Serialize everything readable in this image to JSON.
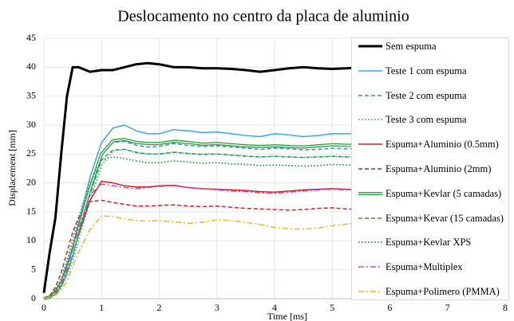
{
  "chart_data": {
    "type": "line",
    "title": "Deslocamento no centro da placa de aluminio",
    "xlabel": "Time [ms]",
    "ylabel": "Displacement [mm]",
    "x": [
      0,
      0.1,
      0.2,
      0.3,
      0.4,
      0.5,
      0.6,
      0.8,
      1.0,
      1.2,
      1.4,
      1.6,
      1.8,
      2.0,
      2.25,
      2.5,
      2.75,
      3.0,
      3.25,
      3.5,
      3.75,
      4.0,
      4.25,
      4.5,
      4.75,
      5.0,
      5.25,
      5.5
    ],
    "xlim": [
      0,
      8
    ],
    "xticks": [
      0,
      1,
      2,
      3,
      4,
      5,
      6,
      7,
      8
    ],
    "ylim": [
      0,
      45
    ],
    "yticks": [
      0,
      5,
      10,
      15,
      20,
      25,
      30,
      35,
      40,
      45
    ],
    "grid": true,
    "legend": "right",
    "series": [
      {
        "name": "Sem espuma",
        "color": "#000000",
        "style": "thick",
        "values": [
          1,
          8,
          14,
          25,
          35,
          40,
          40,
          39.2,
          39.5,
          39.5,
          40,
          40.5,
          40.7,
          40.5,
          40,
          40,
          39.8,
          39.8,
          39.7,
          39.5,
          39.2,
          39.5,
          39.8,
          40,
          39.8,
          39.7,
          39.8,
          40
        ]
      },
      {
        "name": "Teste 1 com espuma",
        "color": "#3aa8e0",
        "style": "solid",
        "values": [
          0,
          0.5,
          1.5,
          3,
          6,
          9,
          13,
          21,
          27,
          29.5,
          30,
          29,
          28.5,
          28.5,
          29.2,
          29,
          28.7,
          28.8,
          28.5,
          28.2,
          28,
          28.5,
          28.3,
          28,
          28.2,
          28.5,
          28.5,
          28.5
        ]
      },
      {
        "name": "Teste 2 com espuma",
        "color": "#3a8fd0",
        "style": "dashed",
        "values": [
          0,
          0.3,
          1,
          2.5,
          5,
          8,
          12,
          19,
          25,
          27,
          27.2,
          26.5,
          26.2,
          26.3,
          26.8,
          26.5,
          26.3,
          26.4,
          26.2,
          26,
          25.8,
          26,
          25.9,
          25.7,
          25.8,
          26,
          25.9,
          26
        ]
      },
      {
        "name": "Teste 3 com espuma",
        "color": "#4aa0d8",
        "style": "dotted",
        "values": [
          0,
          0.2,
          0.8,
          2,
          4,
          6.5,
          10,
          17,
          23,
          25.5,
          25.8,
          25.2,
          25,
          25,
          25.3,
          25.1,
          25,
          25,
          24.8,
          24.7,
          24.5,
          24.6,
          24.5,
          24.4,
          24.5,
          24.6,
          24.5,
          24.6
        ]
      },
      {
        "name": "Espuma+Aluminio (0.5mm)",
        "color": "#d62020",
        "style": "solid",
        "values": [
          0,
          0.3,
          1,
          2.5,
          5,
          8,
          11,
          17,
          20.3,
          20,
          19.5,
          19.3,
          19.3,
          19.5,
          19.6,
          19.2,
          19,
          18.9,
          18.8,
          18.7,
          18.5,
          18.4,
          18.6,
          18.8,
          18.9,
          19,
          18.9,
          18.8
        ]
      },
      {
        "name": "Espuma+Aluminio (2mm)",
        "color": "#d62020",
        "style": "dashed",
        "values": [
          0,
          0.5,
          2,
          4.5,
          8,
          11.5,
          14,
          16.8,
          17,
          16.6,
          16.3,
          16,
          16,
          16.1,
          16.2,
          16,
          15.9,
          16,
          15.8,
          15.6,
          15.5,
          15.4,
          15.3,
          15.4,
          15.6,
          15.7,
          15.5,
          15.4
        ]
      },
      {
        "name": "Espuma+Kevlar (5 camadas)",
        "color": "#2ea040",
        "style": "double",
        "values": [
          0,
          0.3,
          1,
          2.5,
          5,
          8,
          12,
          19,
          25,
          27.3,
          27.5,
          27,
          26.8,
          26.8,
          27.2,
          27,
          26.7,
          26.8,
          26.6,
          26.4,
          26.3,
          26.4,
          26.3,
          26.2,
          26.4,
          26.6,
          26.5,
          26.5
        ]
      },
      {
        "name": "Espuma+Kevar (15 camadas)",
        "color": "#2ea040",
        "style": "dashed",
        "values": [
          0,
          0.3,
          1,
          2.3,
          4.5,
          7.5,
          11,
          18,
          24,
          25.7,
          25.8,
          25.3,
          25,
          25,
          25.3,
          25.1,
          24.9,
          25,
          24.8,
          24.6,
          24.5,
          24.6,
          24.5,
          24.4,
          24.5,
          24.6,
          24.5,
          24.5
        ]
      },
      {
        "name": "Espuma+Kevlar XPS",
        "color": "#1f9a3a",
        "style": "dotted",
        "values": [
          0,
          0.5,
          1.5,
          3.5,
          6.5,
          10,
          14,
          20,
          24,
          24.5,
          24.2,
          23.8,
          23.5,
          23.5,
          23.8,
          23.6,
          23.4,
          23.5,
          23.3,
          23.2,
          23,
          23.1,
          23,
          22.9,
          23,
          23.2,
          23.1,
          23
        ]
      },
      {
        "name": "Espuma+Multiplex",
        "color": "#d040c8",
        "style": "dashdot",
        "values": [
          0,
          0.3,
          1,
          2.5,
          5,
          8.5,
          12,
          18,
          19.8,
          19.5,
          19.2,
          19,
          19.2,
          19.4,
          19.5,
          19.2,
          19,
          18.8,
          18.6,
          18.5,
          18.3,
          18.2,
          18.4,
          18.6,
          18.8,
          18.9,
          18.8,
          18.7
        ]
      },
      {
        "name": "Espuma+Polimero (PMMA)",
        "color": "#e8b820",
        "style": "dashdot",
        "values": [
          0,
          0.2,
          0.6,
          1.5,
          3,
          5.5,
          8,
          12,
          14.3,
          14.2,
          13.8,
          13.5,
          13.4,
          13.5,
          13.3,
          13,
          13.2,
          13.6,
          13.5,
          13.2,
          12.8,
          12.3,
          12.1,
          12,
          12.2,
          12.6,
          12.9,
          13
        ]
      }
    ]
  }
}
